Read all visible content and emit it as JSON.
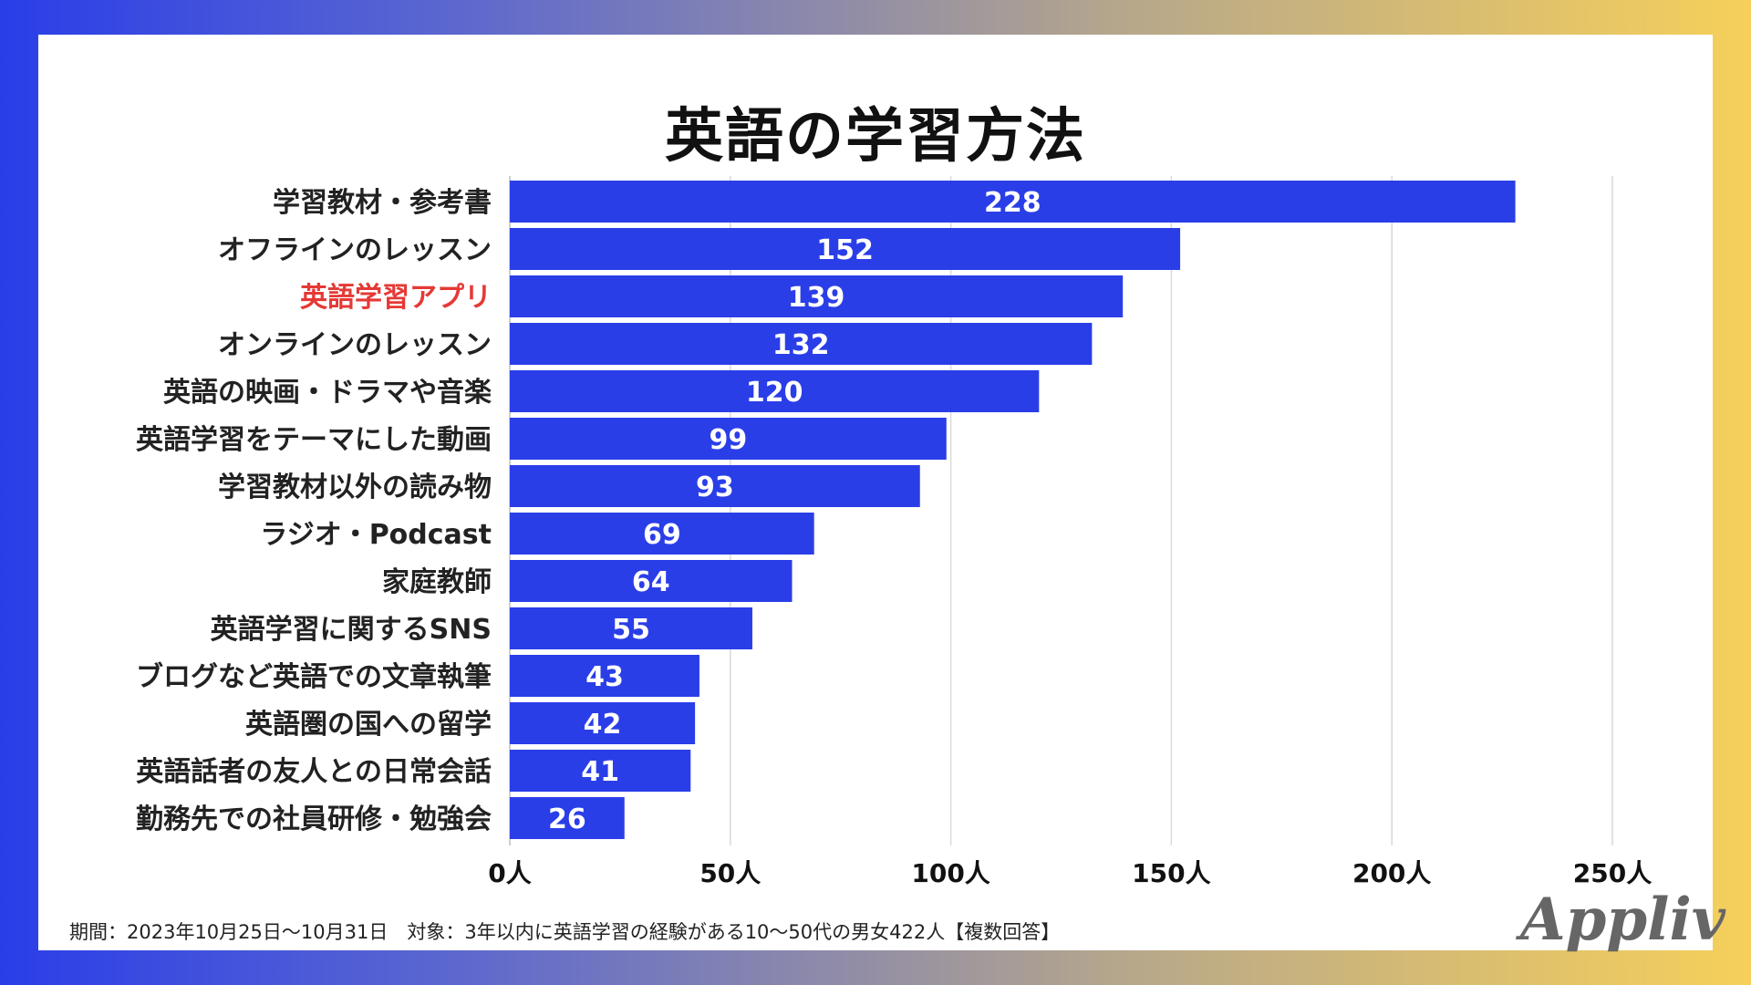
{
  "title": "英語の学習方法",
  "chart_data": {
    "type": "bar",
    "orientation": "horizontal",
    "title": "英語の学習方法",
    "categories": [
      "学習教材・参考書",
      "オフラインのレッスン",
      "英語学習アプリ",
      "オンラインのレッスン",
      "英語の映画・ドラマや音楽",
      "英語学習をテーマにした動画",
      "学習教材以外の読み物",
      "ラジオ・Podcast",
      "家庭教師",
      "英語学習に関するSNS",
      "ブログなど英語での文章執筆",
      "英語圏の国への留学",
      "英語話者の友人との日常会話",
      "勤務先での社員研修・勉強会"
    ],
    "values": [
      228,
      152,
      139,
      132,
      120,
      99,
      93,
      69,
      64,
      55,
      43,
      42,
      41,
      26
    ],
    "highlight_category": "英語学習アプリ",
    "xlim": [
      0,
      250
    ],
    "xticks": [
      0,
      50,
      100,
      150,
      200,
      250
    ],
    "xtick_labels": [
      "0人",
      "50人",
      "100人",
      "150人",
      "200人",
      "250人"
    ],
    "unit": "人",
    "xlabel": "",
    "ylabel": "",
    "grid": true
  },
  "colors": {
    "bar": "#2a3ee8",
    "highlight_text": "#e53935",
    "grid": "#d9d9d9"
  },
  "footnote": "期間：2023年10月25日〜10月31日　対象：3年以内に英語学習の経験がある10〜50代の男女422人【複数回答】",
  "logo_text": "Appliv"
}
